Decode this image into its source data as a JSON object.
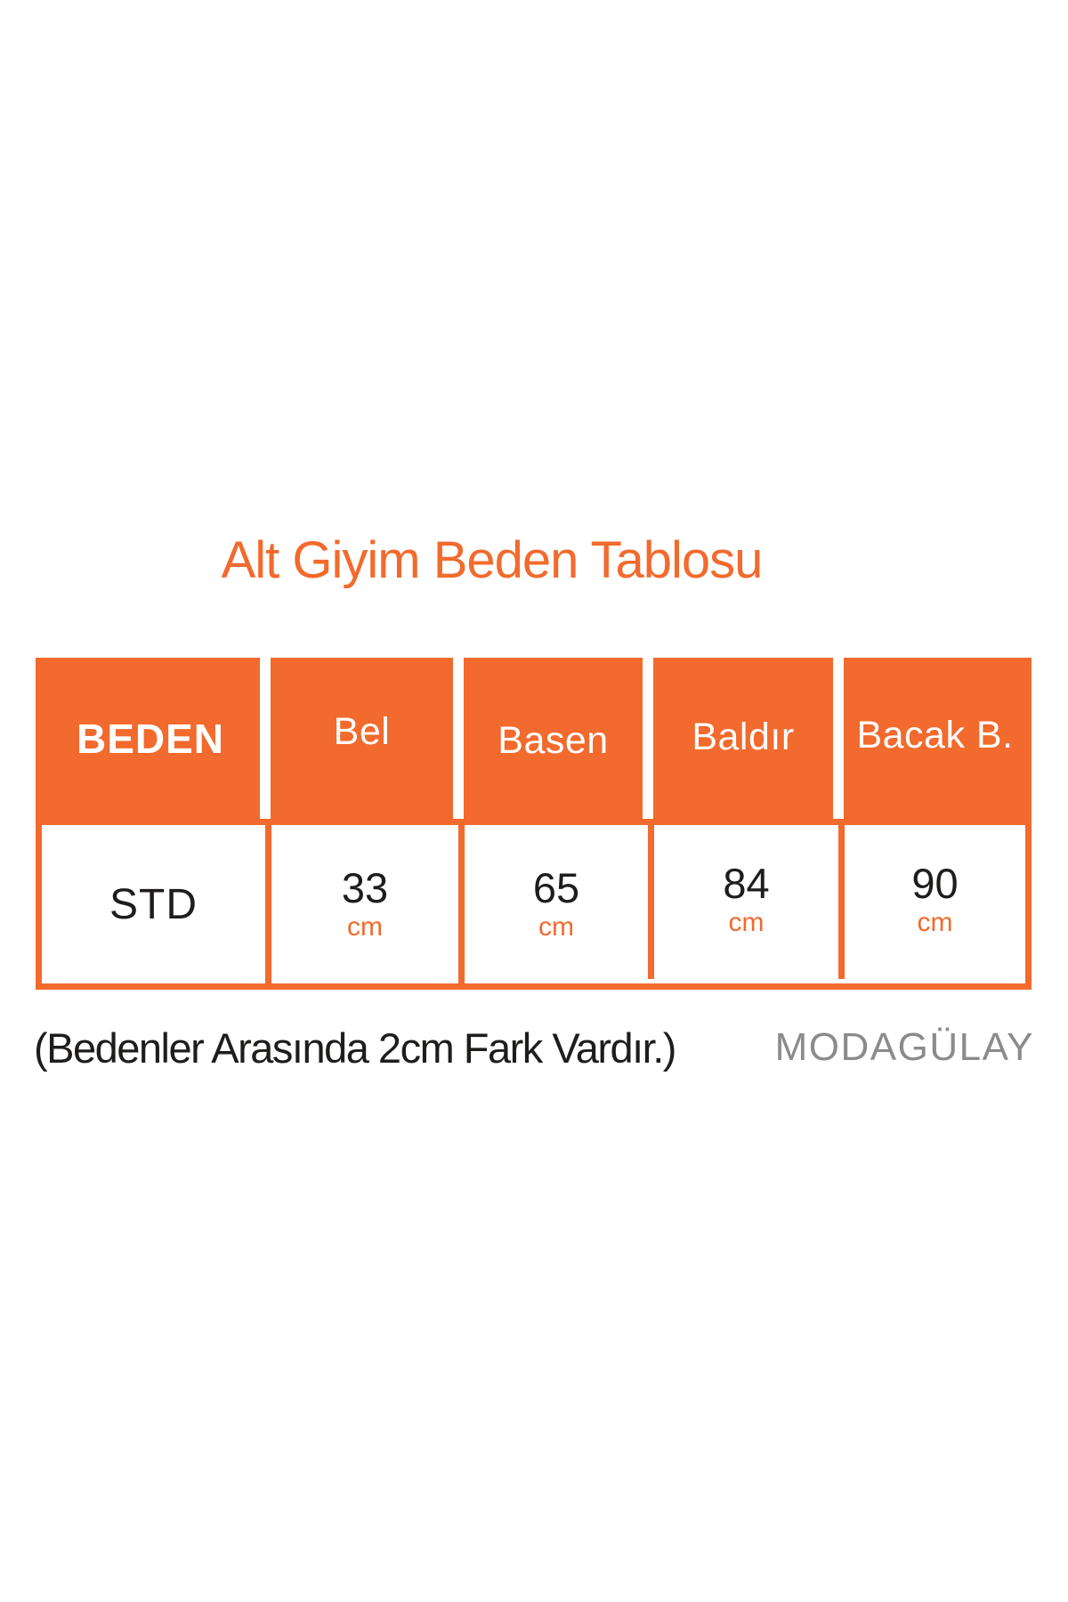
{
  "title": "Alt Giyim Beden Tablosu",
  "table": {
    "headers": [
      "BEDEN",
      "Bel",
      "Basen",
      "Baldır",
      "Bacak B."
    ],
    "row": {
      "size_label": "STD",
      "measurements": [
        {
          "value": "33",
          "unit": "cm"
        },
        {
          "value": "65",
          "unit": "cm"
        },
        {
          "value": "84",
          "unit": "cm"
        },
        {
          "value": "90",
          "unit": "cm"
        }
      ]
    }
  },
  "footer": {
    "note": "(Bedenler Arasında 2cm Fark Vardır.)",
    "brand": "MODAGÜLAY"
  },
  "colors": {
    "accent": "#F26A2D",
    "text": "#1F1D1C",
    "brand_gray": "#8B8B8D",
    "background": "#FFFFFF"
  },
  "chart_data": {
    "type": "table",
    "title": "Alt Giyim Beden Tablosu",
    "columns": [
      "BEDEN",
      "Bel",
      "Basen",
      "Baldır",
      "Bacak B."
    ],
    "rows": [
      [
        "STD",
        "33 cm",
        "65 cm",
        "84 cm",
        "90 cm"
      ]
    ],
    "note": "(Bedenler Arasında 2cm Fark Vardır.)"
  }
}
